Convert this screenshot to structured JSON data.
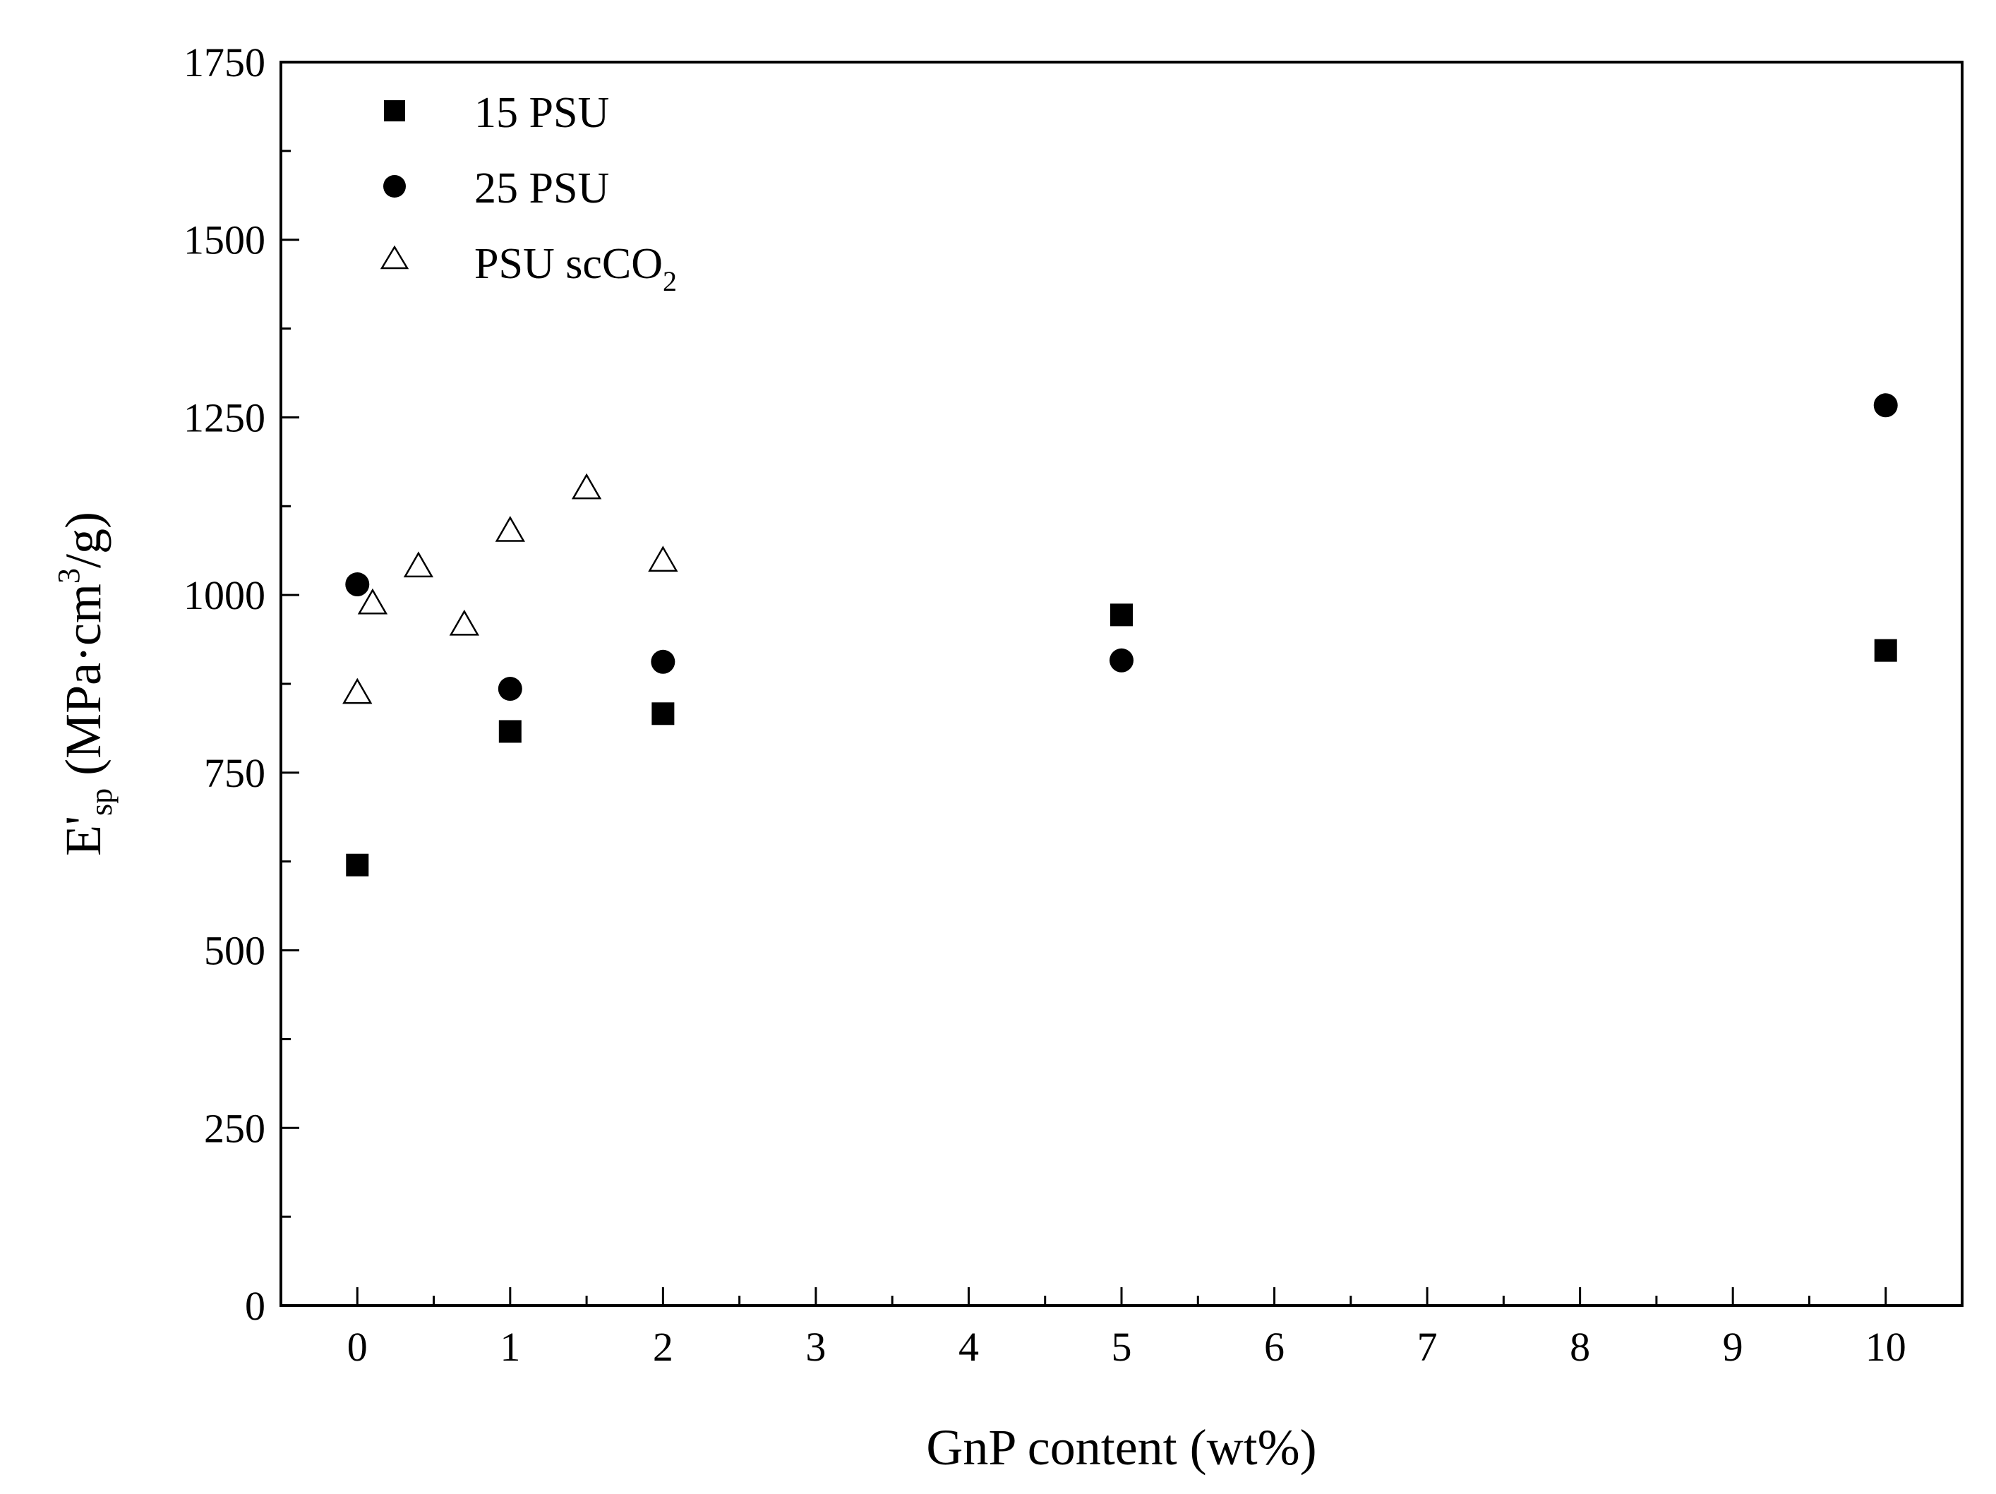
{
  "chart_data": {
    "type": "scatter",
    "title": "",
    "xlabel": "GnP content (wt%)",
    "ylabel": {
      "main": "E'",
      "subscript": "sp",
      "units_prefix": " (MPa·cm",
      "units_superscript": "3",
      "units_suffix": "/g)"
    },
    "xlim": [
      -0.5,
      10.5
    ],
    "ylim": [
      0,
      1750
    ],
    "x_ticks": [
      0,
      1,
      2,
      3,
      4,
      5,
      6,
      7,
      8,
      9,
      10
    ],
    "y_ticks": [
      0,
      250,
      500,
      750,
      1000,
      1250,
      1500,
      1750
    ],
    "grid": false,
    "legend_position": "top-left",
    "series": [
      {
        "name": "15 PSU",
        "marker": "filled-square",
        "color": "#000000",
        "points": [
          {
            "x": 0,
            "y": 620
          },
          {
            "x": 1,
            "y": 808
          },
          {
            "x": 2,
            "y": 833
          },
          {
            "x": 5,
            "y": 972
          },
          {
            "x": 10,
            "y": 922
          }
        ]
      },
      {
        "name": "25 PSU",
        "marker": "filled-circle",
        "color": "#000000",
        "points": [
          {
            "x": 0,
            "y": 1015
          },
          {
            "x": 1,
            "y": 868
          },
          {
            "x": 2,
            "y": 906
          },
          {
            "x": 5,
            "y": 908
          },
          {
            "x": 10,
            "y": 1267
          }
        ]
      },
      {
        "name": "PSU scCO",
        "name_subscript": "2",
        "marker": "open-triangle",
        "color": "#000000",
        "points": [
          {
            "x": 0,
            "y": 862
          },
          {
            "x": 0.1,
            "y": 988
          },
          {
            "x": 0.4,
            "y": 1040
          },
          {
            "x": 0.7,
            "y": 958
          },
          {
            "x": 1,
            "y": 1090
          },
          {
            "x": 1.5,
            "y": 1150
          },
          {
            "x": 2,
            "y": 1048
          }
        ]
      }
    ]
  }
}
